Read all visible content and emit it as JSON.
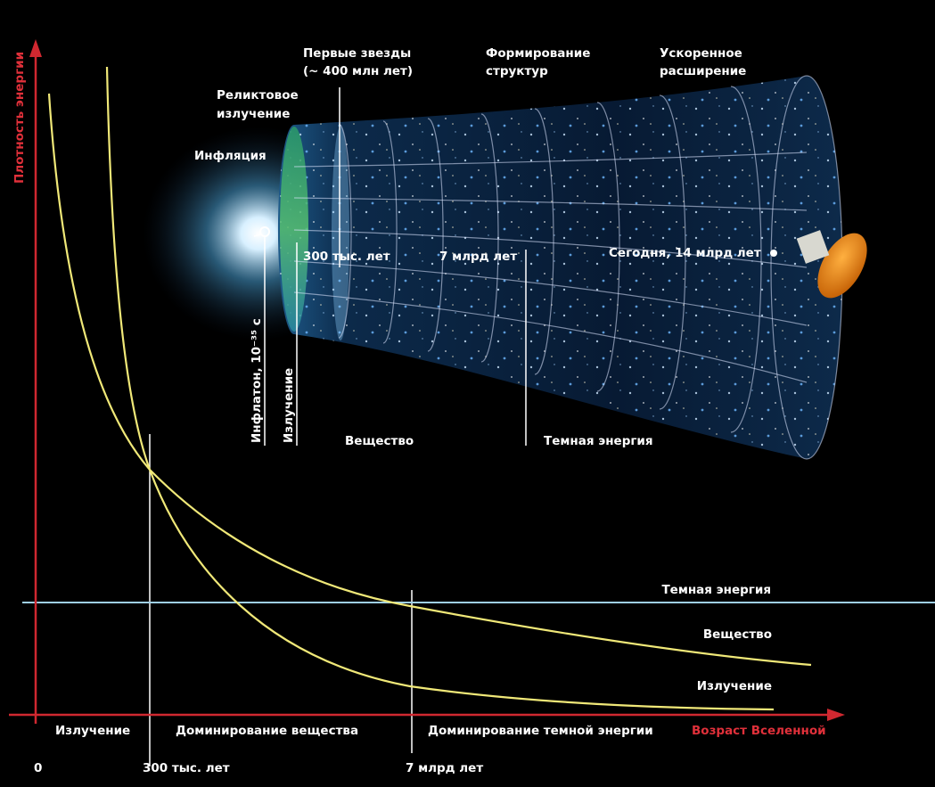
{
  "axes": {
    "y_title": "Плотность энергии",
    "x_title": "Возраст Вселенной",
    "x_ticks": [
      "0",
      "300 тыс. лет",
      "7 млрд лет"
    ]
  },
  "cone_labels": {
    "first_stars": [
      "Первые звезды",
      "(~ 400 млн лет)"
    ],
    "structure_formation": [
      "Формирование",
      "структур"
    ],
    "accelerated_expansion": [
      "Ускоренное",
      "расширение"
    ],
    "cmb": [
      "Реликтовое",
      "излучение"
    ],
    "inflation": "Инфляция",
    "t_300k": "300 тыс. лет",
    "t_7b": "7 млрд лет",
    "today": "Сегодня, 14 млрд лет",
    "inflaton": "Инфлатон, 10⁻³⁵ с",
    "radiation": "Излучение",
    "matter": "Вещество",
    "dark_energy": "Темная энергия"
  },
  "curve_labels": {
    "dark_energy": "Темная энергия",
    "matter": "Вещество",
    "radiation": "Излучение"
  },
  "eras": [
    "Излучение",
    "Доминирование вещества",
    "Доминирование темной энергии"
  ]
}
